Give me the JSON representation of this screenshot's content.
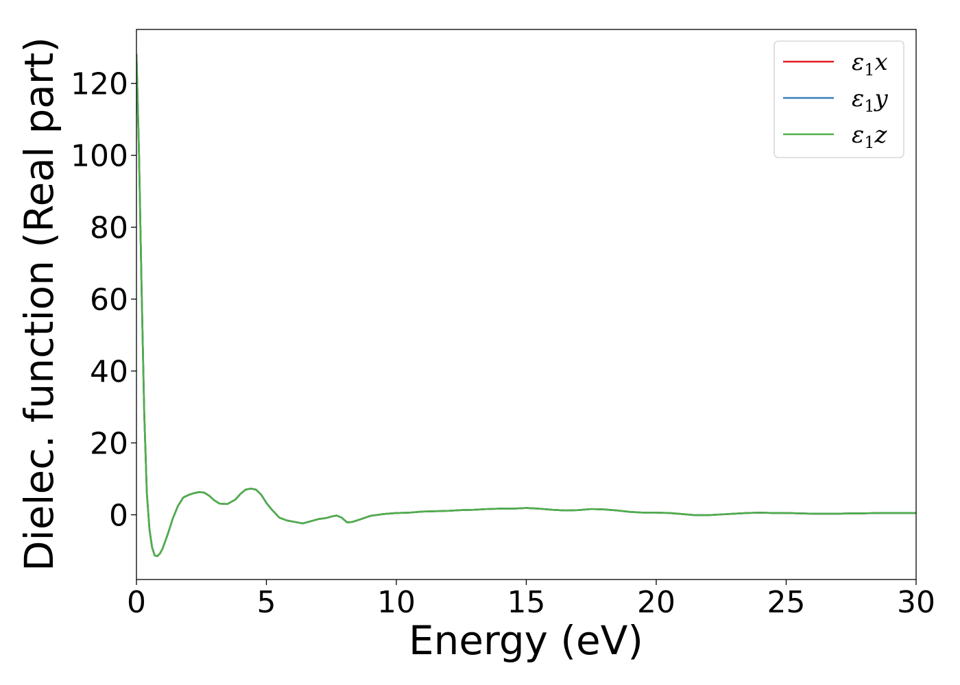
{
  "chart_data": {
    "type": "line",
    "title": "",
    "xlabel": "Energy (eV)",
    "ylabel": "Dielec. function (Real part)",
    "xlim": [
      0,
      30
    ],
    "ylim": [
      -18,
      135
    ],
    "xticks": [
      0,
      5,
      10,
      15,
      20,
      25,
      30
    ],
    "xtick_labels": [
      "0",
      "5",
      "10",
      "15",
      "20",
      "25",
      "30"
    ],
    "yticks": [
      0,
      20,
      40,
      60,
      80,
      100,
      120
    ],
    "ytick_labels": [
      "0",
      "20",
      "40",
      "60",
      "80",
      "100",
      "120"
    ],
    "grid": false,
    "legend_position": "top-right",
    "series": [
      {
        "name": "ε1x",
        "legend_main": "ε",
        "legend_sub": "1",
        "legend_var": "x",
        "color": "#e41a1c",
        "points": []
      },
      {
        "name": "ε1y",
        "legend_main": "ε",
        "legend_sub": "1",
        "legend_var": "y",
        "color": "#377eb8",
        "points": []
      },
      {
        "name": "ε1z",
        "legend_main": "ε",
        "legend_sub": "1",
        "legend_var": "z",
        "color": "#4daf4a",
        "points": []
      }
    ],
    "shared_points": [
      [
        0.0,
        128.0
      ],
      [
        0.1,
        100.0
      ],
      [
        0.2,
        62.0
      ],
      [
        0.3,
        28.0
      ],
      [
        0.4,
        6.0
      ],
      [
        0.5,
        -4.0
      ],
      [
        0.6,
        -9.0
      ],
      [
        0.7,
        -11.3
      ],
      [
        0.8,
        -11.5
      ],
      [
        0.9,
        -10.8
      ],
      [
        1.0,
        -9.5
      ],
      [
        1.2,
        -5.5
      ],
      [
        1.4,
        -1.0
      ],
      [
        1.6,
        2.5
      ],
      [
        1.8,
        4.8
      ],
      [
        2.0,
        5.5
      ],
      [
        2.2,
        6.0
      ],
      [
        2.4,
        6.3
      ],
      [
        2.6,
        6.2
      ],
      [
        2.8,
        5.3
      ],
      [
        3.0,
        4.0
      ],
      [
        3.2,
        3.1
      ],
      [
        3.5,
        3.0
      ],
      [
        3.8,
        4.2
      ],
      [
        4.0,
        5.8
      ],
      [
        4.2,
        7.0
      ],
      [
        4.4,
        7.3
      ],
      [
        4.6,
        7.0
      ],
      [
        4.8,
        5.6
      ],
      [
        5.0,
        3.3
      ],
      [
        5.2,
        1.5
      ],
      [
        5.5,
        -0.8
      ],
      [
        5.8,
        -1.6
      ],
      [
        6.1,
        -2.0
      ],
      [
        6.4,
        -2.4
      ],
      [
        6.7,
        -1.8
      ],
      [
        7.0,
        -1.2
      ],
      [
        7.3,
        -0.9
      ],
      [
        7.5,
        -0.5
      ],
      [
        7.7,
        -0.2
      ],
      [
        7.9,
        -0.8
      ],
      [
        8.1,
        -2.1
      ],
      [
        8.3,
        -2.0
      ],
      [
        8.6,
        -1.3
      ],
      [
        9.0,
        -0.3
      ],
      [
        9.5,
        0.2
      ],
      [
        10.0,
        0.5
      ],
      [
        10.5,
        0.6
      ],
      [
        11.0,
        0.9
      ],
      [
        11.5,
        1.0
      ],
      [
        12.0,
        1.1
      ],
      [
        12.5,
        1.3
      ],
      [
        13.0,
        1.4
      ],
      [
        13.5,
        1.6
      ],
      [
        14.0,
        1.7
      ],
      [
        14.5,
        1.7
      ],
      [
        15.0,
        1.9
      ],
      [
        15.5,
        1.7
      ],
      [
        16.0,
        1.4
      ],
      [
        16.5,
        1.2
      ],
      [
        17.0,
        1.3
      ],
      [
        17.5,
        1.6
      ],
      [
        18.0,
        1.5
      ],
      [
        18.5,
        1.2
      ],
      [
        19.0,
        0.8
      ],
      [
        19.5,
        0.6
      ],
      [
        20.0,
        0.6
      ],
      [
        20.5,
        0.5
      ],
      [
        21.0,
        0.2
      ],
      [
        21.5,
        -0.1
      ],
      [
        22.0,
        -0.1
      ],
      [
        22.5,
        0.1
      ],
      [
        23.0,
        0.3
      ],
      [
        23.5,
        0.5
      ],
      [
        24.0,
        0.6
      ],
      [
        24.5,
        0.5
      ],
      [
        25.0,
        0.5
      ],
      [
        25.5,
        0.4
      ],
      [
        26.0,
        0.3
      ],
      [
        26.5,
        0.3
      ],
      [
        27.0,
        0.3
      ],
      [
        27.5,
        0.4
      ],
      [
        28.0,
        0.4
      ],
      [
        28.5,
        0.5
      ],
      [
        29.0,
        0.5
      ],
      [
        29.5,
        0.5
      ],
      [
        30.0,
        0.5
      ]
    ]
  }
}
